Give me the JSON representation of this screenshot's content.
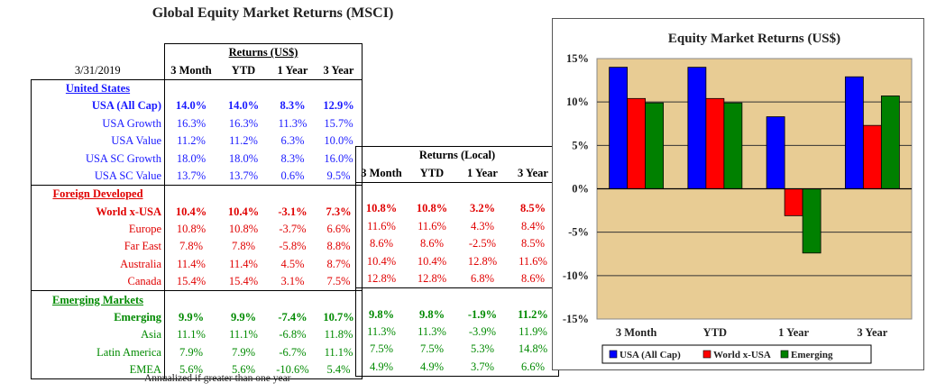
{
  "title": "Global Equity Market Returns (MSCI)",
  "footnote": "Annualized if greater than one year",
  "table_us": {
    "date": "3/31/2019",
    "group_header": "Returns (US$)",
    "columns": [
      "3 Month",
      "YTD",
      "1 Year",
      "3 Year"
    ],
    "sections": [
      {
        "name": "United States",
        "color": "#1a1aff",
        "rows": [
          {
            "label": "USA (All Cap)",
            "bold": true,
            "values": [
              "14.0%",
              "14.0%",
              "8.3%",
              "12.9%"
            ]
          },
          {
            "label": "USA Growth",
            "values": [
              "16.3%",
              "16.3%",
              "11.3%",
              "15.7%"
            ]
          },
          {
            "label": "USA Value",
            "values": [
              "11.2%",
              "11.2%",
              "6.3%",
              "10.0%"
            ]
          },
          {
            "label": "USA SC Growth",
            "values": [
              "18.0%",
              "18.0%",
              "8.3%",
              "16.0%"
            ]
          },
          {
            "label": "USA SC Value",
            "values": [
              "13.7%",
              "13.7%",
              "0.6%",
              "9.5%"
            ]
          }
        ]
      },
      {
        "name": "Foreign Developed",
        "color": "#e00000",
        "rows": [
          {
            "label": "World x-USA",
            "bold": true,
            "values": [
              "10.4%",
              "10.4%",
              "-3.1%",
              "7.3%"
            ]
          },
          {
            "label": "Europe",
            "values": [
              "10.8%",
              "10.8%",
              "-3.7%",
              "6.6%"
            ]
          },
          {
            "label": "Far East",
            "values": [
              "7.8%",
              "7.8%",
              "-5.8%",
              "8.8%"
            ]
          },
          {
            "label": "Australia",
            "values": [
              "11.4%",
              "11.4%",
              "4.5%",
              "8.7%"
            ]
          },
          {
            "label": "Canada",
            "values": [
              "15.4%",
              "15.4%",
              "3.1%",
              "7.5%"
            ]
          }
        ]
      },
      {
        "name": "Emerging Markets",
        "color": "#008a00",
        "rows": [
          {
            "label": "Emerging",
            "bold": true,
            "values": [
              "9.9%",
              "9.9%",
              "-7.4%",
              "10.7%"
            ]
          },
          {
            "label": "Asia",
            "values": [
              "11.1%",
              "11.1%",
              "-6.8%",
              "11.8%"
            ]
          },
          {
            "label": "Latin America",
            "values": [
              "7.9%",
              "7.9%",
              "-6.7%",
              "11.1%"
            ]
          },
          {
            "label": "EMEA",
            "values": [
              "5.6%",
              "5.6%",
              "-10.6%",
              "5.4%"
            ]
          }
        ]
      }
    ]
  },
  "table_local": {
    "group_header": "Returns (Local)",
    "columns": [
      "3 Month",
      "YTD",
      "1 Year",
      "3 Year"
    ],
    "sections": [
      {
        "color": "#e00000",
        "rows": [
          {
            "bold": true,
            "values": [
              "10.8%",
              "10.8%",
              "3.2%",
              "8.5%"
            ]
          },
          {
            "values": [
              "11.6%",
              "11.6%",
              "4.3%",
              "8.4%"
            ]
          },
          {
            "values": [
              "8.6%",
              "8.6%",
              "-2.5%",
              "8.5%"
            ]
          },
          {
            "values": [
              "10.4%",
              "10.4%",
              "12.8%",
              "11.6%"
            ]
          },
          {
            "values": [
              "12.8%",
              "12.8%",
              "6.8%",
              "8.6%"
            ]
          }
        ]
      },
      {
        "color": "#008a00",
        "rows": [
          {
            "bold": true,
            "values": [
              "9.8%",
              "9.8%",
              "-1.9%",
              "11.2%"
            ]
          },
          {
            "values": [
              "11.3%",
              "11.3%",
              "-3.9%",
              "11.9%"
            ]
          },
          {
            "values": [
              "7.5%",
              "7.5%",
              "5.3%",
              "14.8%"
            ]
          },
          {
            "values": [
              "4.9%",
              "4.9%",
              "3.7%",
              "6.6%"
            ]
          }
        ]
      }
    ]
  },
  "chart_data": {
    "type": "bar",
    "title": "Equity Market Returns (US$)",
    "categories": [
      "3 Month",
      "YTD",
      "1 Year",
      "3 Year"
    ],
    "series": [
      {
        "name": "USA (All Cap)",
        "color": "#0000ff",
        "values": [
          14.0,
          14.0,
          8.3,
          12.9
        ]
      },
      {
        "name": "World x-USA",
        "color": "#ff0000",
        "values": [
          10.4,
          10.4,
          -3.1,
          7.3
        ]
      },
      {
        "name": "Emerging",
        "color": "#008000",
        "values": [
          9.9,
          9.9,
          -7.4,
          10.7
        ]
      }
    ],
    "ylim": [
      -15,
      15
    ],
    "yticks": [
      "15%",
      "10%",
      "5%",
      "0%",
      "-5%",
      "-10%",
      "-15%"
    ],
    "grid": true,
    "plot_background": "#e8cc94",
    "legend_position": "bottom"
  }
}
